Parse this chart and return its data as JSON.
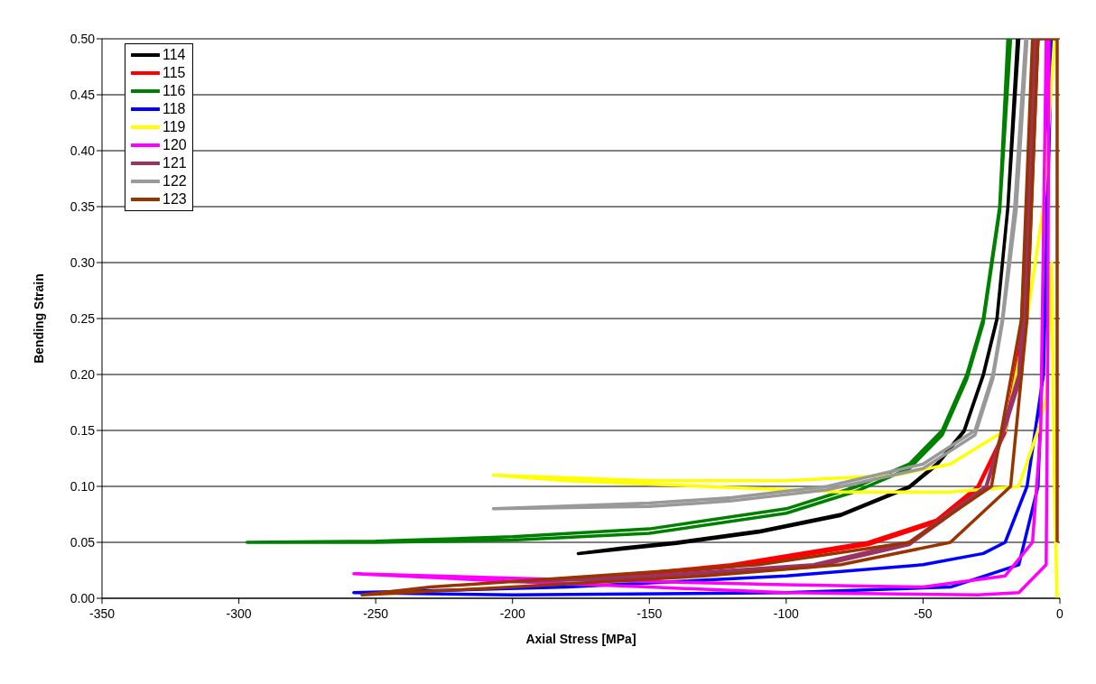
{
  "chart_data": {
    "type": "line",
    "xlabel": "Axial Stress [MPa]",
    "ylabel": "Bending Strain",
    "xlim": [
      -350,
      0
    ],
    "xticks": [
      -350,
      -300,
      -250,
      -200,
      -150,
      -100,
      -50,
      0
    ],
    "ylim": [
      0,
      0.5
    ],
    "yticks": [
      {
        "value": 0,
        "label": "0.00"
      },
      {
        "value": 0.05,
        "label": "0.05"
      },
      {
        "value": 0.1,
        "label": "0.10"
      },
      {
        "value": 0.15,
        "label": "0.15"
      },
      {
        "value": 0.2,
        "label": "0.20"
      },
      {
        "value": 0.25,
        "label": "0.25"
      },
      {
        "value": 0.3,
        "label": "0.30"
      },
      {
        "value": 0.35,
        "label": "0.35"
      },
      {
        "value": 0.4,
        "label": "0.40"
      },
      {
        "value": 0.45,
        "label": "0.45"
      },
      {
        "value": 0.5,
        "label": "0.50"
      }
    ],
    "grid": "y",
    "legend": "top left",
    "marker": "none",
    "line_style": "solid",
    "series": [
      {
        "name": "114",
        "color": "#000000",
        "x": [
          -15.5,
          -19,
          -23,
          -28,
          -35,
          -45,
          -55,
          -80,
          -110,
          -140,
          -160,
          -176,
          -160,
          -140,
          -110,
          -80,
          -55,
          -45,
          -35,
          -28,
          -23,
          -19,
          -15
        ],
        "values": [
          0.5,
          0.35,
          0.25,
          0.2,
          0.15,
          0.12,
          0.1,
          0.075,
          0.06,
          0.05,
          0.045,
          0.04,
          0.044,
          0.049,
          0.059,
          0.074,
          0.099,
          0.119,
          0.149,
          0.199,
          0.249,
          0.349,
          0.5
        ]
      },
      {
        "name": "115",
        "color": "#ff0000",
        "x": [
          -9,
          -13,
          -20,
          -30,
          -45,
          -70,
          -120,
          -170,
          -120,
          -70,
          -45,
          -30,
          -20,
          -12,
          -8
        ],
        "values": [
          0.5,
          0.25,
          0.15,
          0.1,
          0.07,
          0.05,
          0.03,
          0.018,
          0.028,
          0.048,
          0.068,
          0.098,
          0.148,
          0.25,
          0.5
        ]
      },
      {
        "name": "116",
        "color": "#008000",
        "x": [
          -19,
          -22,
          -28,
          -34,
          -43,
          -55,
          -74,
          -100,
          -150,
          -200,
          -250,
          -297,
          -250,
          -200,
          -150,
          -100,
          -74,
          -55,
          -43,
          -34,
          -28,
          -22,
          -18
        ],
        "values": [
          0.5,
          0.35,
          0.25,
          0.2,
          0.15,
          0.12,
          0.1,
          0.08,
          0.062,
          0.055,
          0.051,
          0.05,
          0.05,
          0.052,
          0.058,
          0.076,
          0.096,
          0.116,
          0.146,
          0.196,
          0.246,
          0.346,
          0.5
        ]
      },
      {
        "name": "118",
        "color": "#0000ff",
        "x": [
          -3,
          -6,
          -12,
          -20,
          -28,
          -50,
          -100,
          -180,
          -258,
          -200,
          -100,
          -40,
          -15,
          -8,
          -5,
          -4
        ],
        "values": [
          0.5,
          0.2,
          0.1,
          0.05,
          0.04,
          0.03,
          0.02,
          0.01,
          0.005,
          0.003,
          0.005,
          0.01,
          0.03,
          0.1,
          0.3,
          0.5
        ]
      },
      {
        "name": "119",
        "color": "#ffff00",
        "x": [
          -2,
          -6,
          -12,
          -20,
          -40,
          -60,
          -100,
          -150,
          -207,
          -180,
          -130,
          -80,
          -40,
          -15,
          -8,
          -5,
          -3,
          -2,
          -1
        ],
        "values": [
          0.5,
          0.35,
          0.25,
          0.15,
          0.12,
          0.11,
          0.105,
          0.105,
          0.11,
          0.105,
          0.1,
          0.095,
          0.095,
          0.1,
          0.15,
          0.18,
          0.3,
          0.1,
          0
        ]
      },
      {
        "name": "120",
        "color": "#ff00ff",
        "x": [
          -5,
          -7,
          -10,
          -20,
          -50,
          -100,
          -150,
          -200,
          -258,
          -200,
          -150,
          -100,
          -30,
          -15,
          -5,
          -4.5,
          -4
        ],
        "values": [
          0.5,
          0.15,
          0.05,
          0.02,
          0.01,
          0.012,
          0.015,
          0.018,
          0.022,
          0.015,
          0.01,
          0.005,
          0.003,
          0.005,
          0.03,
          0.2,
          0.5
        ]
      },
      {
        "name": "121",
        "color": "#993366",
        "x": [
          -9,
          -15,
          -27,
          -55,
          -90,
          -150,
          -200,
          -150,
          -90,
          -55,
          -27,
          -14,
          -8
        ],
        "values": [
          0.5,
          0.2,
          0.1,
          0.05,
          0.03,
          0.02,
          0.015,
          0.018,
          0.028,
          0.048,
          0.098,
          0.2,
          0.5
        ]
      },
      {
        "name": "122",
        "color": "#999999",
        "x": [
          -12.5,
          -16.5,
          -21,
          -24.5,
          -31,
          -50,
          -85,
          -120,
          -150,
          -207,
          -150,
          -120,
          -85,
          -50,
          -31,
          -24.5,
          -21,
          -16,
          -12
        ],
        "values": [
          0.5,
          0.35,
          0.25,
          0.2,
          0.15,
          0.12,
          0.1,
          0.09,
          0.085,
          0.08,
          0.082,
          0.087,
          0.097,
          0.116,
          0.146,
          0.196,
          0.246,
          0.346,
          0.5
        ]
      },
      {
        "name": "123",
        "color": "#993300",
        "x": [
          -10,
          -14,
          -25,
          -55,
          -110,
          -170,
          -230,
          -255,
          -200,
          -130,
          -80,
          -40,
          -18,
          -12,
          -8,
          -1,
          -1
        ],
        "values": [
          0.5,
          0.25,
          0.1,
          0.05,
          0.03,
          0.02,
          0.01,
          0.003,
          0.01,
          0.02,
          0.03,
          0.05,
          0.1,
          0.25,
          0.5,
          0.5,
          0.05
        ]
      }
    ]
  }
}
